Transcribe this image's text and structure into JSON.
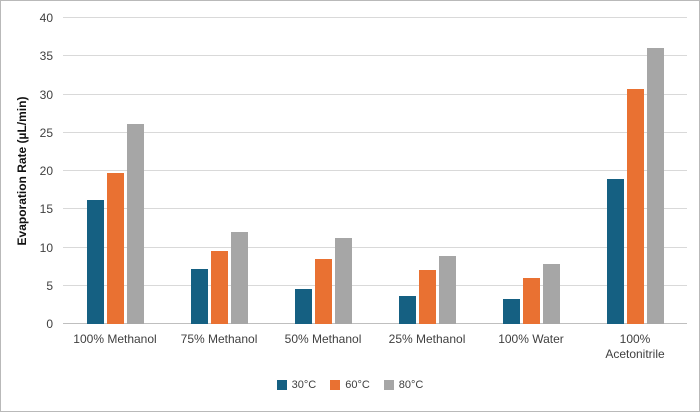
{
  "chart": {
    "background": "#ffffff",
    "border_color": "#b9b9b9",
    "gridline_color": "#d9d9d9"
  },
  "chart_data": {
    "type": "bar",
    "title": "",
    "xlabel": "",
    "ylabel": "Evaporation Rate (µL/min)",
    "ylim": [
      0,
      40
    ],
    "ytick_step": 5,
    "grid": true,
    "legend_position": "bottom",
    "categories": [
      "100% Methanol",
      "75% Methanol",
      "50% Methanol",
      "25% Methanol",
      "100% Water",
      "100% Acetonitrile"
    ],
    "series": [
      {
        "name": "30°C",
        "color": "#156082",
        "values": [
          16.2,
          7.2,
          4.6,
          3.7,
          3.3,
          18.9
        ]
      },
      {
        "name": "60°C",
        "color": "#E97132",
        "values": [
          19.8,
          9.6,
          8.5,
          7.0,
          6.0,
          30.7
        ]
      },
      {
        "name": "80°C",
        "color": "#A6A6A6",
        "values": [
          26.1,
          12.0,
          11.2,
          8.9,
          7.8,
          36.1
        ]
      }
    ]
  }
}
